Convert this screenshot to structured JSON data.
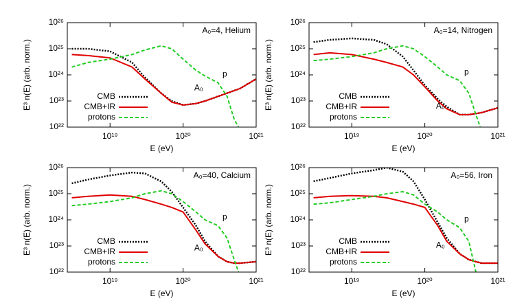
{
  "chart_data": [
    {
      "type": "line",
      "title": "A₀=4, Helium",
      "xlabel": "E (eV)",
      "ylabel": "E³ n(E) (arb. norm.)",
      "xlog": true,
      "ylog": true,
      "xlim": [
        2.6e+18,
        1e+21
      ],
      "ylim": [
        1e+22,
        1e+26
      ],
      "xticks": [
        {
          "value": 1e+19,
          "label": "10¹⁹"
        },
        {
          "value": 1e+20,
          "label": "10²⁰"
        },
        {
          "value": 1e+21,
          "label": "10²¹"
        }
      ],
      "yticks": [
        {
          "value": 1e+22,
          "label": "10²²"
        },
        {
          "value": 1e+23,
          "label": "10²³"
        },
        {
          "value": 1e+24,
          "label": "10²⁴"
        },
        {
          "value": 1e+25,
          "label": "10²⁵"
        },
        {
          "value": 1e+26,
          "label": "10²⁶"
        }
      ],
      "x": [
        3e+18,
        5e+18,
        1e+19,
        2e+19,
        3e+19,
        5e+19,
        7e+19,
        1e+20,
        1.5e+20,
        2e+20,
        3e+20,
        4e+20,
        5e+20,
        6e+20,
        1e+21
      ],
      "series": [
        {
          "name": "CMB",
          "color": "#000000",
          "style": "dotted",
          "values": [
            1e+25,
            1e+25,
            8e+24,
            3e+24,
            8e+23,
            2e+23,
            1e+23,
            7e+22,
            8e+22,
            1e+23,
            1.5e+23,
            2e+23,
            2.5e+23,
            3e+23,
            7e+23
          ]
        },
        {
          "name": "CMB+IR",
          "color": "#e00000",
          "style": "solid",
          "label": "A₀",
          "values": [
            6e+24,
            5.5e+24,
            4.5e+24,
            2e+24,
            7e+23,
            2e+23,
            9e+22,
            7e+22,
            8e+22,
            1e+23,
            1.5e+23,
            2e+23,
            2.5e+23,
            3e+23,
            7e+23
          ]
        },
        {
          "name": "protons",
          "color": "#22cc22",
          "style": "dashed",
          "label": "p",
          "values": [
            2e+24,
            3e+24,
            4e+24,
            6e+24,
            9e+24,
            1.3e+25,
            1e+25,
            4e+24,
            1.5e+24,
            9e+23,
            5e+23,
            1.5e+23,
            2e+22,
            8e+21,
            null
          ]
        }
      ]
    },
    {
      "type": "line",
      "title": "A₀=14, Nitrogen",
      "xlabel": "E (eV)",
      "ylabel": "E³ n(E) (arb. norm.)",
      "xlog": true,
      "ylog": true,
      "xlim": [
        2.6e+18,
        1e+21
      ],
      "ylim": [
        1e+22,
        1e+26
      ],
      "xticks": [
        {
          "value": 1e+19,
          "label": "10¹⁹"
        },
        {
          "value": 1e+20,
          "label": "10²⁰"
        },
        {
          "value": 1e+21,
          "label": "10²¹"
        }
      ],
      "yticks": [
        {
          "value": 1e+22,
          "label": "10²²"
        },
        {
          "value": 1e+23,
          "label": "10²³"
        },
        {
          "value": 1e+24,
          "label": "10²⁴"
        },
        {
          "value": 1e+25,
          "label": "10²⁵"
        },
        {
          "value": 1e+26,
          "label": "10²⁶"
        }
      ],
      "x": [
        3e+18,
        5e+18,
        1e+19,
        2e+19,
        3e+19,
        5e+19,
        7e+19,
        1e+20,
        1.5e+20,
        2e+20,
        3e+20,
        4e+20,
        5e+20,
        6e+20,
        1e+21
      ],
      "series": [
        {
          "name": "CMB",
          "color": "#000000",
          "style": "dotted",
          "values": [
            1.8e+25,
            2.2e+25,
            2.5e+25,
            2.2e+25,
            1.5e+25,
            5e+24,
            1.5e+24,
            4e+23,
            1.2e+23,
            6e+22,
            3e+22,
            3e+22,
            3.3e+22,
            3.6e+22,
            5.5e+22
          ]
        },
        {
          "name": "CMB+IR",
          "color": "#e00000",
          "style": "solid",
          "label": "A₀",
          "values": [
            6e+24,
            7e+24,
            6e+24,
            4e+24,
            3e+24,
            2e+24,
            1e+24,
            3.5e+23,
            1e+23,
            5e+22,
            3e+22,
            3e+22,
            3.3e+22,
            3.6e+22,
            5.5e+22
          ]
        },
        {
          "name": "protons",
          "color": "#22cc22",
          "style": "dashed",
          "label": "p",
          "values": [
            3.5e+24,
            4e+24,
            5e+24,
            7e+24,
            1e+25,
            1.3e+25,
            1e+25,
            5e+24,
            2e+24,
            1e+24,
            6e+23,
            2e+23,
            3e+22,
            7e+21,
            null
          ]
        }
      ]
    },
    {
      "type": "line",
      "title": "A₀=40, Calcium",
      "xlabel": "E (eV)",
      "ylabel": "E³ n(E) (arb. norm.)",
      "xlog": true,
      "ylog": true,
      "xlim": [
        2.6e+18,
        1e+21
      ],
      "ylim": [
        1e+22,
        1e+26
      ],
      "xticks": [
        {
          "value": 1e+19,
          "label": "10¹⁹"
        },
        {
          "value": 1e+20,
          "label": "10²⁰"
        },
        {
          "value": 1e+21,
          "label": "10²¹"
        }
      ],
      "yticks": [
        {
          "value": 1e+22,
          "label": "10²²"
        },
        {
          "value": 1e+23,
          "label": "10²³"
        },
        {
          "value": 1e+24,
          "label": "10²⁴"
        },
        {
          "value": 1e+25,
          "label": "10²⁵"
        },
        {
          "value": 1e+26,
          "label": "10²⁶"
        }
      ],
      "x": [
        3e+18,
        5e+18,
        1e+19,
        2e+19,
        3e+19,
        5e+19,
        7e+19,
        1e+20,
        1.5e+20,
        2e+20,
        3e+20,
        4e+20,
        5e+20,
        6e+20,
        1e+21
      ],
      "series": [
        {
          "name": "CMB",
          "color": "#000000",
          "style": "dotted",
          "values": [
            2.5e+25,
            3.5e+25,
            5e+25,
            6.5e+25,
            6e+25,
            3e+25,
            1.2e+25,
            3e+24,
            6e+23,
            1.5e+23,
            4e+22,
            2.5e+22,
            2.2e+22,
            2.2e+22,
            2.5e+22
          ]
        },
        {
          "name": "CMB+IR",
          "color": "#e00000",
          "style": "solid",
          "label": "A₀",
          "values": [
            7e+24,
            8e+24,
            9e+24,
            8e+24,
            6e+24,
            4e+24,
            3e+24,
            2e+24,
            4e+23,
            1.2e+23,
            4e+22,
            2.5e+22,
            2.2e+22,
            2.2e+22,
            2.5e+22
          ]
        },
        {
          "name": "protons",
          "color": "#22cc22",
          "style": "dashed",
          "label": "p",
          "values": [
            3.5e+24,
            4e+24,
            5e+24,
            7e+24,
            1e+25,
            1.3e+25,
            1e+25,
            5e+24,
            2e+24,
            1e+24,
            6e+23,
            2e+23,
            3e+22,
            7e+21,
            null
          ]
        }
      ]
    },
    {
      "type": "line",
      "title": "A₀=56, Iron",
      "xlabel": "E (eV)",
      "ylabel": "E³ n(E) (arb. norm.)",
      "xlog": true,
      "ylog": true,
      "xlim": [
        2.6e+18,
        1e+21
      ],
      "ylim": [
        1e+22,
        1e+26
      ],
      "xticks": [
        {
          "value": 1e+19,
          "label": "10¹⁹"
        },
        {
          "value": 1e+20,
          "label": "10²⁰"
        },
        {
          "value": 1e+21,
          "label": "10²¹"
        }
      ],
      "yticks": [
        {
          "value": 1e+22,
          "label": "10²²"
        },
        {
          "value": 1e+23,
          "label": "10²³"
        },
        {
          "value": 1e+24,
          "label": "10²⁴"
        },
        {
          "value": 1e+25,
          "label": "10²⁵"
        },
        {
          "value": 1e+26,
          "label": "10²⁶"
        }
      ],
      "x": [
        3e+18,
        5e+18,
        1e+19,
        2e+19,
        3e+19,
        5e+19,
        7e+19,
        1e+20,
        1.5e+20,
        2e+20,
        3e+20,
        4e+20,
        5e+20,
        6e+20,
        1e+21
      ],
      "series": [
        {
          "name": "CMB",
          "color": "#000000",
          "style": "dotted",
          "values": [
            3e+25,
            4e+25,
            6e+25,
            8e+25,
            1e+26,
            7e+25,
            3e+25,
            6e+24,
            8e+23,
            2e+23,
            5e+22,
            3e+22,
            2.5e+22,
            2.2e+22,
            2.2e+22
          ]
        },
        {
          "name": "CMB+IR",
          "color": "#e00000",
          "style": "solid",
          "label": "A₀",
          "values": [
            7e+24,
            8e+24,
            8.5e+24,
            8e+24,
            7e+24,
            5e+24,
            4e+24,
            3e+24,
            6e+23,
            1.5e+23,
            5e+22,
            3e+22,
            2.5e+22,
            2.2e+22,
            2.2e+22
          ]
        },
        {
          "name": "protons",
          "color": "#22cc22",
          "style": "dashed",
          "label": "p",
          "values": [
            4e+24,
            4.5e+24,
            6e+24,
            8e+24,
            1e+25,
            1.2e+25,
            9e+24,
            4e+24,
            2e+24,
            1e+24,
            5e+23,
            1.5e+23,
            1e+22,
            null,
            null
          ]
        }
      ]
    }
  ]
}
